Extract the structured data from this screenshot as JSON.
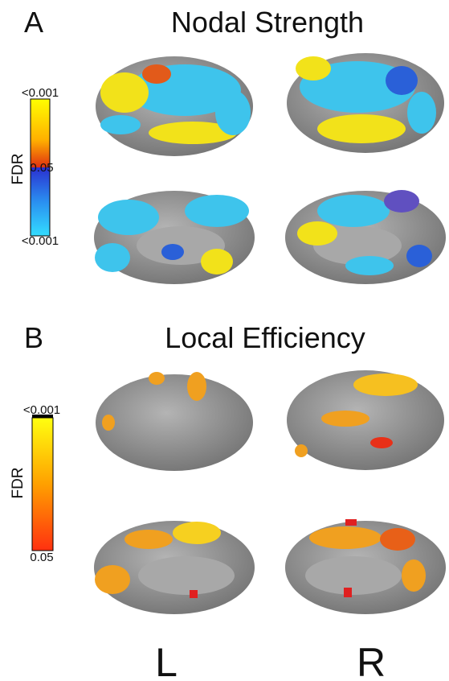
{
  "panels": [
    {
      "label": "A",
      "title": "Nodal Strength",
      "colorbar": {
        "axis_label": "FDR",
        "top": "<0.001",
        "middle": "0.05",
        "bottom": "<0.001"
      }
    },
    {
      "label": "B",
      "title": "Local Efficiency",
      "colorbar": {
        "axis_label": "FDR",
        "top": "<0.001",
        "bottom": "0.05"
      }
    }
  ],
  "hemispheres": [
    "L",
    "R"
  ]
}
